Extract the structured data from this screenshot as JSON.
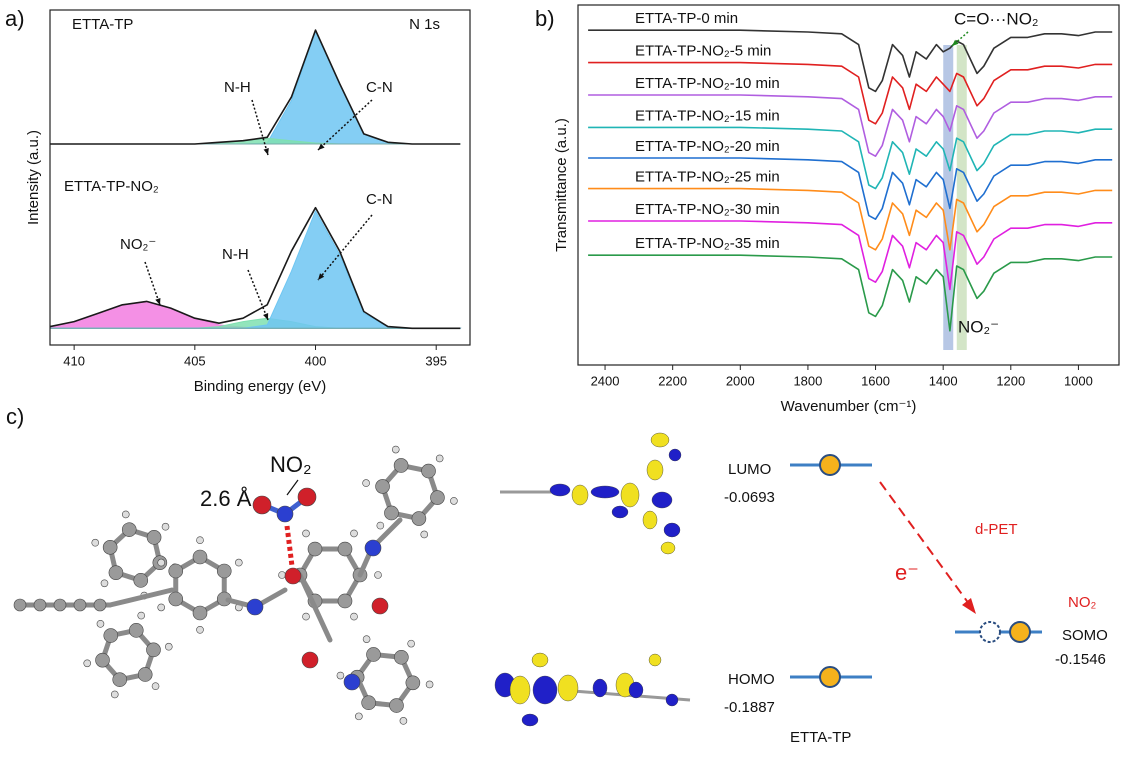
{
  "chart_data": [
    {
      "type": "line",
      "panel_label": "a)",
      "xlabel": "Binding energy (eV)",
      "ylabel": "Intensity (a.u.)",
      "xlim": [
        411,
        393.6
      ],
      "ylim": [
        0,
        100
      ],
      "xticks": [
        410,
        405,
        400,
        395
      ],
      "x": [
        411,
        410,
        409,
        408,
        407,
        406,
        405,
        404,
        403,
        402,
        401,
        400,
        399,
        398,
        397,
        396,
        395,
        394
      ],
      "series": [
        {
          "color": "#6ec6f2",
          "fill": true,
          "base": 60,
          "values": [
            60,
            60,
            60,
            60,
            60,
            60,
            60,
            60,
            60,
            60.3,
            73,
            93.5,
            78,
            63,
            60.5,
            60,
            60,
            60
          ]
        },
        {
          "color": "#7fe0b0",
          "fill": true,
          "base": 60,
          "values": [
            60,
            60,
            60,
            60,
            60,
            60,
            60,
            60.3,
            61,
            61.7,
            61,
            60.3,
            60,
            60,
            60,
            60,
            60,
            60
          ]
        },
        {
          "name": "ETTA-TP",
          "color": "#1a1a1a",
          "values": [
            60,
            60,
            60,
            60,
            60,
            60,
            60,
            60.5,
            61,
            62,
            74,
            94,
            78,
            63,
            60.5,
            60,
            60,
            60
          ]
        },
        {
          "color": "#f27ce0",
          "fill": true,
          "base": 5,
          "values": [
            5.5,
            7,
            9.5,
            12,
            13,
            11,
            8,
            6,
            5.3,
            5,
            5,
            5,
            5,
            5,
            5,
            5,
            5,
            5
          ]
        },
        {
          "color": "#7fe0b0",
          "fill": true,
          "base": 5,
          "values": [
            5,
            5,
            5,
            5,
            5,
            5,
            5,
            5.5,
            7,
            8,
            7,
            5.5,
            5,
            5,
            5,
            5,
            5,
            5
          ]
        },
        {
          "color": "#6ec6f2",
          "fill": true,
          "base": 5,
          "values": [
            5,
            5,
            5,
            5,
            5,
            5,
            5,
            5,
            5,
            6,
            22,
            40,
            27,
            9.5,
            5.5,
            5,
            5,
            5
          ]
        },
        {
          "name": "ETTA-TP-NO₂",
          "color": "#1a1a1a",
          "values": [
            5.5,
            7,
            9.5,
            12,
            13,
            11,
            8,
            6.5,
            8,
            12,
            28,
            41,
            28,
            10,
            5.5,
            5,
            5,
            5
          ]
        }
      ],
      "annotations": [
        {
          "text": "N 1s"
        },
        {
          "text": "N-H"
        },
        {
          "text": "C-N"
        },
        {
          "text": "NO₂⁻"
        },
        {
          "text": "N-H"
        },
        {
          "text": "C-N"
        }
      ]
    },
    {
      "type": "line",
      "panel_label": "b)",
      "xlabel": "Wavenumber (cm⁻¹)",
      "ylabel": "Transmittance (a.u.)",
      "xlim": [
        2480,
        880
      ],
      "ylim": [
        0,
        100
      ],
      "xticks": [
        2400,
        2200,
        2000,
        1800,
        1600,
        1400,
        1200,
        1000
      ],
      "x": [
        2450,
        2200,
        2000,
        1800,
        1700,
        1650,
        1620,
        1600,
        1580,
        1550,
        1520,
        1500,
        1480,
        1450,
        1420,
        1400,
        1380,
        1360,
        1340,
        1300,
        1280,
        1250,
        1200,
        1150,
        1100,
        1050,
        1000,
        950,
        900
      ],
      "highlights": [
        {
          "x": 1385,
          "color": "#9fb4dc"
        },
        {
          "x": 1345,
          "color": "#c4dcb4"
        }
      ],
      "series": [
        {
          "name": "ETTA-TP-0 min",
          "color": "#333333",
          "values": [
            93,
            93,
            93,
            92.5,
            92,
            89,
            77,
            76,
            79,
            89,
            86,
            80,
            87,
            85,
            89,
            87,
            88,
            90,
            89,
            81,
            83,
            88,
            91,
            91,
            92,
            92,
            91.5,
            92.5,
            92.5
          ]
        },
        {
          "name": "ETTA-TP-NO₂-5 min",
          "color": "#e02020",
          "values": [
            84,
            84,
            84,
            83.5,
            83,
            80,
            68,
            67,
            70,
            80,
            77,
            71,
            78,
            76,
            80,
            78,
            76,
            81,
            80,
            72,
            74,
            79,
            82,
            82,
            83,
            83,
            82.5,
            83.5,
            83.5
          ]
        },
        {
          "name": "ETTA-TP-NO₂-10 min",
          "color": "#b05ee0",
          "values": [
            75,
            75,
            75,
            74.5,
            74,
            71,
            59,
            58,
            61,
            71,
            68,
            62,
            69,
            67,
            71,
            69,
            65,
            72,
            71,
            63,
            65,
            70,
            73,
            73,
            74,
            74,
            73.5,
            74.5,
            74.5
          ]
        },
        {
          "name": "ETTA-TP-NO₂-15 min",
          "color": "#20b5b5",
          "values": [
            66,
            66,
            66,
            65.5,
            65,
            62,
            50,
            49,
            52,
            62,
            59,
            53,
            60,
            58,
            62,
            60,
            54,
            63,
            62,
            54,
            56,
            61,
            64,
            64,
            65,
            65,
            64.5,
            65.5,
            65.5
          ]
        },
        {
          "name": "ETTA-TP-NO₂-20 min",
          "color": "#1f6fd0",
          "values": [
            57.5,
            57.5,
            57.5,
            57,
            56.5,
            53.5,
            41.5,
            40.5,
            43.5,
            53.5,
            50.5,
            44.5,
            51.5,
            49.5,
            53.5,
            51.5,
            43.5,
            54.5,
            53.5,
            45.5,
            47.5,
            52.5,
            55.5,
            55.5,
            56.5,
            56.5,
            56,
            57,
            57
          ]
        },
        {
          "name": "ETTA-TP-NO₂-25 min",
          "color": "#ff8c1a",
          "values": [
            49,
            49,
            49,
            48.5,
            48,
            45,
            33,
            32,
            35,
            45,
            42,
            36,
            43,
            41,
            45,
            43,
            32,
            46,
            45,
            37,
            39,
            44,
            47,
            47,
            48,
            48,
            47.5,
            48.5,
            48.5
          ]
        },
        {
          "name": "ETTA-TP-NO₂-30 min",
          "color": "#e020e0",
          "values": [
            40,
            40,
            40,
            39.5,
            39,
            36,
            24,
            23,
            26,
            36,
            33,
            27,
            34,
            32,
            36,
            34,
            21,
            37,
            36,
            28,
            30,
            35,
            38,
            38,
            39,
            39,
            38.5,
            39.5,
            39.5
          ]
        },
        {
          "name": "ETTA-TP-NO₂-35 min",
          "color": "#2a9a4a",
          "values": [
            30.5,
            30.5,
            30.5,
            30,
            29.5,
            26.5,
            14.5,
            13.5,
            16.5,
            26.5,
            23.5,
            17.5,
            24.5,
            22.5,
            26.5,
            24.5,
            9.5,
            27.5,
            26.5,
            18.5,
            20.5,
            25.5,
            28.5,
            28.5,
            29.5,
            29.5,
            29,
            30,
            30
          ]
        }
      ],
      "annotations": [
        {
          "text": "C=O···NO₂",
          "color": "#1e8a1e"
        },
        {
          "text": "NO₂⁻",
          "color": "#e02020"
        }
      ]
    }
  ],
  "diagram": {
    "panel_label": "c)",
    "adsorbate": "NO₂",
    "distance": "2.6 Å",
    "lumo": {
      "label": "LUMO",
      "energy": "-0.0693"
    },
    "homo": {
      "label": "HOMO",
      "energy": "-0.1887"
    },
    "molecule": "ETTA-TP",
    "transfer": "d-PET",
    "electron": "e⁻",
    "acceptor": {
      "label": "NO₂",
      "orbital": "SOMO",
      "energy": "-0.1546"
    }
  }
}
